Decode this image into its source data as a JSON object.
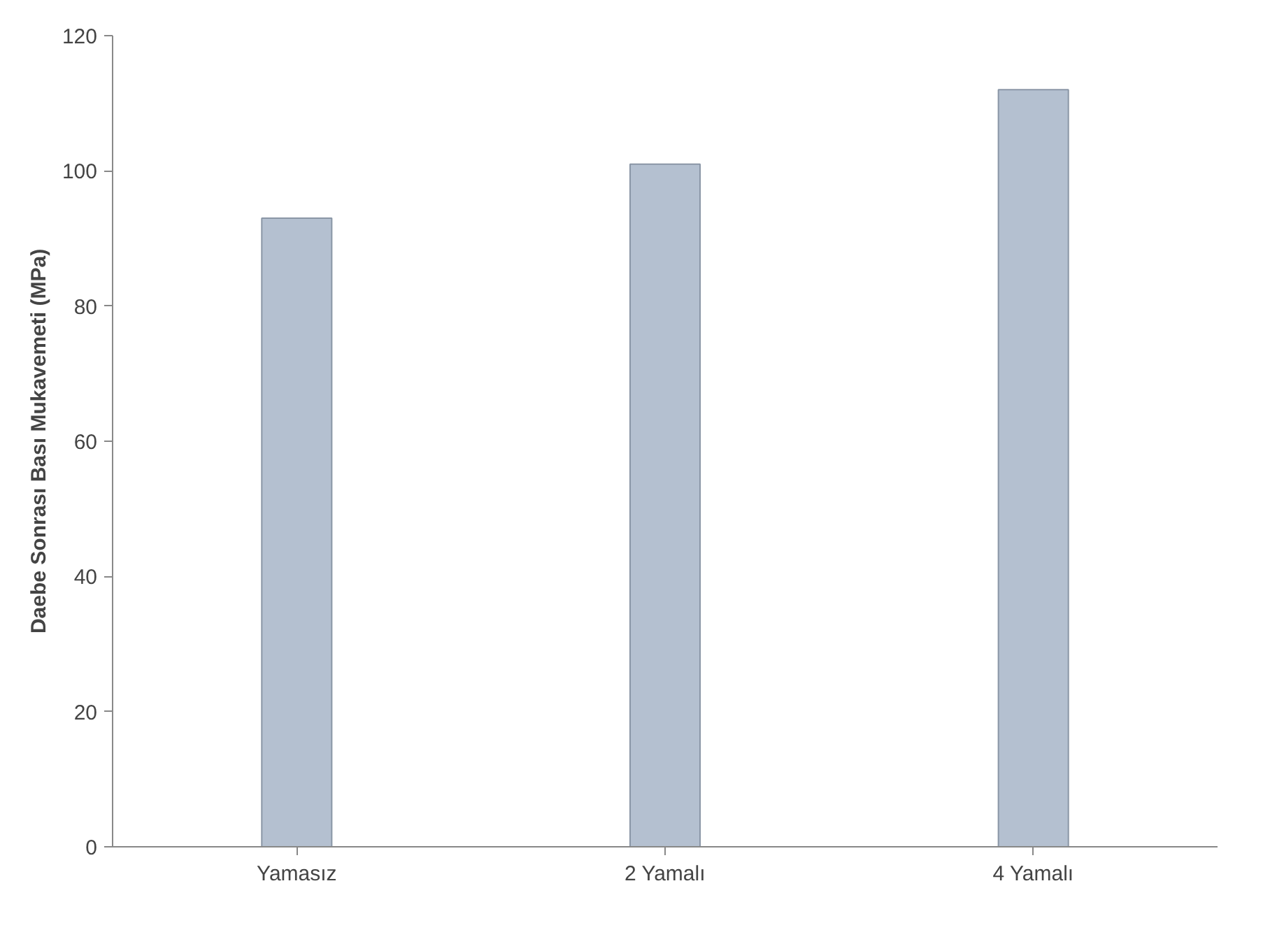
{
  "chart_data": {
    "type": "bar",
    "ylabel": "Daebe Sonrası Bası Mukavemeti (MPa)",
    "categories": [
      "Yamasız",
      "2 Yamalı",
      "4 Yamalı"
    ],
    "values": [
      93,
      101,
      112
    ],
    "color": "#b4c0d0",
    "ylim": [
      0,
      120
    ],
    "yticks": [
      0,
      20,
      40,
      60,
      80,
      100,
      120
    ],
    "grid": false
  }
}
